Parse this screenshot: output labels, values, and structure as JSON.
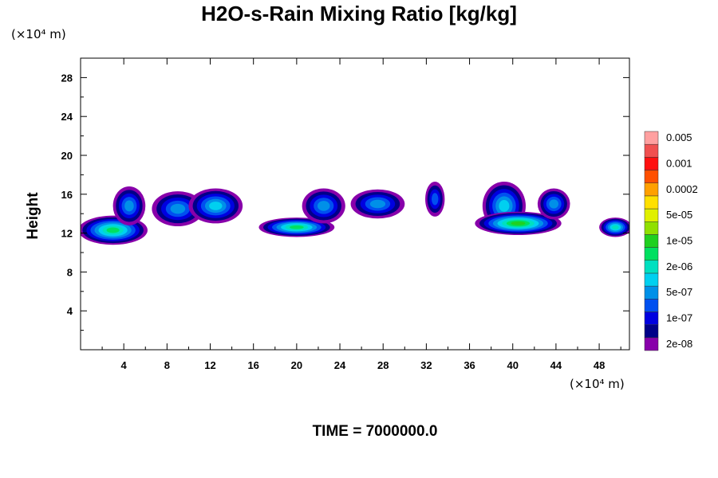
{
  "chart_data": {
    "type": "filled-contour",
    "title": "H2O-s-Rain Mixing Ratio [kg/kg]",
    "ylabel": "Height",
    "xlabel": "",
    "x_unit": "(×10⁴ m)",
    "y_unit": "(×10⁴ m)",
    "xlim": [
      0,
      50.8
    ],
    "ylim": [
      0,
      30
    ],
    "x_ticks": [
      4,
      8,
      12,
      16,
      20,
      24,
      28,
      32,
      36,
      40,
      44,
      48
    ],
    "y_ticks": [
      4,
      8,
      12,
      16,
      20,
      24,
      28
    ],
    "time_label": "TIME = 7000000.0",
    "colorbar": {
      "colors": [
        "#8800aa",
        "#000088",
        "#0000e0",
        "#0050f0",
        "#0090e8",
        "#00d0f0",
        "#00e0c0",
        "#00e060",
        "#20d020",
        "#90e000",
        "#e0f000",
        "#ffe000",
        "#ffa000",
        "#ff5000",
        "#ff1010",
        "#f05050",
        "#ffa0a0"
      ],
      "labels": [
        "2e-08",
        "1e-07",
        "5e-07",
        "2e-06",
        "1e-05",
        "5e-05",
        "0.0002",
        "0.001",
        "0.005"
      ]
    },
    "cloud_cells": [
      {
        "x": 3.0,
        "y": 12.3,
        "rx": 3.2,
        "ry": 1.5,
        "level": 7
      },
      {
        "x": 4.5,
        "y": 14.8,
        "rx": 1.5,
        "ry": 2.0,
        "level": 4
      },
      {
        "x": 9.0,
        "y": 14.5,
        "rx": 2.4,
        "ry": 1.8,
        "level": 4
      },
      {
        "x": 12.5,
        "y": 14.8,
        "rx": 2.5,
        "ry": 1.8,
        "level": 5
      },
      {
        "x": 20.0,
        "y": 12.6,
        "rx": 3.5,
        "ry": 1.0,
        "level": 7
      },
      {
        "x": 22.5,
        "y": 14.8,
        "rx": 2.0,
        "ry": 1.8,
        "level": 4
      },
      {
        "x": 27.5,
        "y": 15.0,
        "rx": 2.5,
        "ry": 1.5,
        "level": 4
      },
      {
        "x": 32.8,
        "y": 15.5,
        "rx": 0.9,
        "ry": 1.8,
        "level": 3
      },
      {
        "x": 39.2,
        "y": 14.8,
        "rx": 2.0,
        "ry": 2.5,
        "level": 5
      },
      {
        "x": 40.5,
        "y": 13.0,
        "rx": 4.0,
        "ry": 1.2,
        "level": 8
      },
      {
        "x": 43.8,
        "y": 15.0,
        "rx": 1.5,
        "ry": 1.6,
        "level": 4
      },
      {
        "x": 49.5,
        "y": 12.6,
        "rx": 1.5,
        "ry": 1.0,
        "level": 6
      }
    ]
  }
}
